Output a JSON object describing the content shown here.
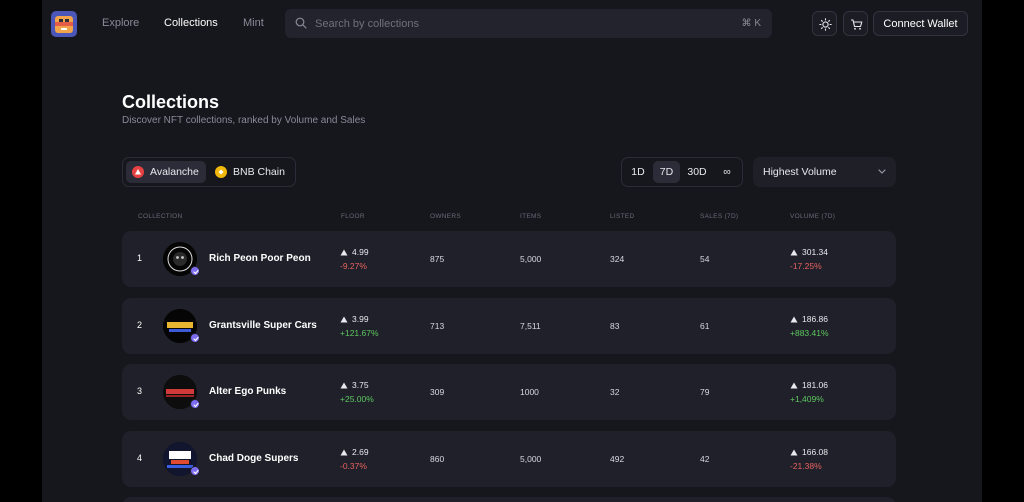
{
  "nav": {
    "links": [
      "Explore",
      "Collections",
      "Mint"
    ],
    "active": "Collections",
    "search_placeholder": "Search by collections",
    "search_shortcut": "⌘ K",
    "connect_label": "Connect Wallet",
    "icons": [
      "sun-icon",
      "cart-icon"
    ]
  },
  "header": {
    "title": "Collections",
    "subtitle": "Discover NFT collections, ranked by Volume and Sales"
  },
  "filters": {
    "chains": [
      {
        "label": "Avalanche",
        "active": true,
        "color": "#e84142"
      },
      {
        "label": "BNB Chain",
        "active": false,
        "color": "#f0b90b"
      }
    ],
    "periods": [
      "1D",
      "7D",
      "30D",
      "∞"
    ],
    "active_period": "7D",
    "sort_value": "Highest Volume"
  },
  "table": {
    "columns": [
      "COLLECTION",
      "FLOOR",
      "OWNERS",
      "ITEMS",
      "LISTED",
      "SALES (7D)",
      "VOLUME (7D)"
    ],
    "rows": [
      {
        "rank": "1",
        "name": "Rich Peon Poor Peon",
        "floor": "4.99",
        "floor_change": "-9.27%",
        "owners": "875",
        "items": "5,000",
        "listed": "324",
        "sales": "54",
        "volume": "301.34",
        "volume_change": "-17.25%"
      },
      {
        "rank": "2",
        "name": "Grantsville Super Cars",
        "floor": "3.99",
        "floor_change": "+121.67%",
        "owners": "713",
        "items": "7,511",
        "listed": "83",
        "sales": "61",
        "volume": "186.86",
        "volume_change": "+883.41%"
      },
      {
        "rank": "3",
        "name": "Alter Ego Punks",
        "floor": "3.75",
        "floor_change": "+25.00%",
        "owners": "309",
        "items": "1000",
        "listed": "32",
        "sales": "79",
        "volume": "181.06",
        "volume_change": "+1,409%"
      },
      {
        "rank": "4",
        "name": "Chad Doge Supers",
        "floor": "2.69",
        "floor_change": "-0.37%",
        "owners": "860",
        "items": "5,000",
        "listed": "492",
        "sales": "42",
        "volume": "166.08",
        "volume_change": "-21.38%"
      }
    ]
  },
  "colors": {
    "negative": "#e5625f",
    "positive": "#5cc85e",
    "verified": "#7b6cf0"
  }
}
